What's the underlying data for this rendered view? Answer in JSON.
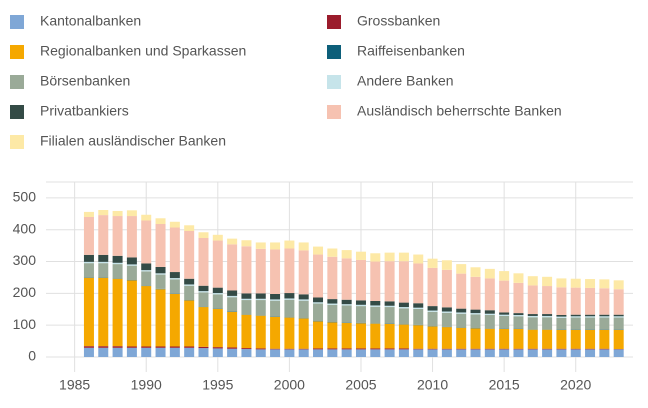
{
  "chart_data": {
    "type": "stacked_bar",
    "x": [
      1986,
      1987,
      1988,
      1989,
      1990,
      1991,
      1992,
      1993,
      1994,
      1995,
      1996,
      1997,
      1998,
      1999,
      2000,
      2001,
      2002,
      2003,
      2004,
      2005,
      2006,
      2007,
      2008,
      2009,
      2010,
      2011,
      2012,
      2013,
      2014,
      2015,
      2016,
      2017,
      2018,
      2019,
      2020,
      2021,
      2022,
      2023
    ],
    "series": [
      {
        "name": "Kantonalbanken",
        "color": "#7fa7d6",
        "values": [
          29,
          29,
          29,
          29,
          29,
          29,
          29,
          29,
          28,
          27,
          26,
          25,
          24,
          24,
          24,
          24,
          24,
          24,
          24,
          24,
          24,
          24,
          24,
          24,
          24,
          24,
          24,
          24,
          24,
          24,
          24,
          24,
          24,
          24,
          24,
          24,
          24,
          24
        ]
      },
      {
        "name": "Grossbanken",
        "color": "#9b1c2c",
        "values": [
          5,
          5,
          5,
          4,
          4,
          4,
          4,
          4,
          4,
          4,
          4,
          3,
          3,
          2,
          2,
          2,
          3,
          3,
          3,
          3,
          3,
          3,
          3,
          2,
          2,
          2,
          2,
          2,
          2,
          2,
          2,
          2,
          2,
          2,
          2,
          2,
          2,
          1
        ]
      },
      {
        "name": "Regionalbanken und Sparkassen",
        "color": "#f5a800",
        "values": [
          215,
          215,
          212,
          208,
          190,
          180,
          165,
          145,
          125,
          120,
          112,
          105,
          103,
          100,
          98,
          95,
          85,
          82,
          80,
          79,
          78,
          77,
          75,
          74,
          70,
          68,
          66,
          64,
          63,
          62,
          62,
          60,
          60,
          59,
          59,
          59,
          59,
          60
        ]
      },
      {
        "name": "Raiffeisenbanken",
        "color": "#0d5f7a",
        "values": [
          1,
          1,
          1,
          1,
          1,
          1,
          1,
          1,
          1,
          1,
          1,
          1,
          1,
          1,
          1,
          1,
          1,
          1,
          1,
          1,
          1,
          1,
          1,
          1,
          1,
          1,
          1,
          1,
          1,
          1,
          1,
          1,
          1,
          1,
          1,
          1,
          1,
          1
        ]
      },
      {
        "name": "Börsenbanken",
        "color": "#9aaa98",
        "values": [
          45,
          45,
          45,
          45,
          45,
          45,
          45,
          45,
          45,
          45,
          45,
          45,
          48,
          50,
          55,
          55,
          55,
          54,
          54,
          53,
          52,
          52,
          50,
          50,
          45,
          44,
          43,
          43,
          42,
          40,
          39,
          38,
          38,
          37,
          38,
          38,
          38,
          38
        ]
      },
      {
        "name": "Andere Banken",
        "color": "#c6e4ea",
        "values": [
          4,
          4,
          4,
          4,
          4,
          4,
          4,
          4,
          4,
          4,
          4,
          4,
          4,
          4,
          4,
          4,
          4,
          4,
          4,
          4,
          4,
          4,
          4,
          4,
          4,
          4,
          4,
          4,
          4,
          4,
          4,
          4,
          4,
          4,
          4,
          4,
          4,
          4
        ]
      },
      {
        "name": "Privatbankiers",
        "color": "#344b46",
        "values": [
          22,
          22,
          22,
          22,
          21,
          20,
          19,
          18,
          17,
          17,
          17,
          17,
          17,
          17,
          17,
          16,
          15,
          14,
          14,
          14,
          14,
          14,
          14,
          14,
          14,
          13,
          12,
          11,
          11,
          7,
          6,
          6,
          6,
          5,
          5,
          5,
          5,
          5
        ]
      },
      {
        "name": "Ausländisch beherrschte Banken",
        "color": "#f6c2b1",
        "values": [
          119,
          125,
          125,
          130,
          135,
          135,
          140,
          150,
          150,
          148,
          145,
          148,
          140,
          140,
          140,
          138,
          135,
          133,
          130,
          127,
          124,
          126,
          130,
          125,
          120,
          118,
          110,
          103,
          100,
          100,
          95,
          90,
          88,
          87,
          85,
          84,
          83,
          80
        ]
      },
      {
        "name": "Filialen ausländischer Banken",
        "color": "#fde9a6",
        "values": [
          16,
          16,
          16,
          18,
          18,
          18,
          18,
          18,
          18,
          18,
          18,
          19,
          20,
          22,
          25,
          25,
          25,
          26,
          26,
          26,
          26,
          27,
          27,
          28,
          29,
          30,
          30,
          30,
          30,
          30,
          30,
          29,
          29,
          28,
          28,
          28,
          28,
          28
        ]
      }
    ],
    "xlim": [
      1983,
      2024
    ],
    "xticks": [
      1985,
      1990,
      1995,
      2000,
      2005,
      2010,
      2015,
      2020
    ],
    "ylim": [
      0,
      550
    ],
    "yticks": [
      0,
      100,
      200,
      300,
      400,
      500
    ],
    "grid": true
  }
}
